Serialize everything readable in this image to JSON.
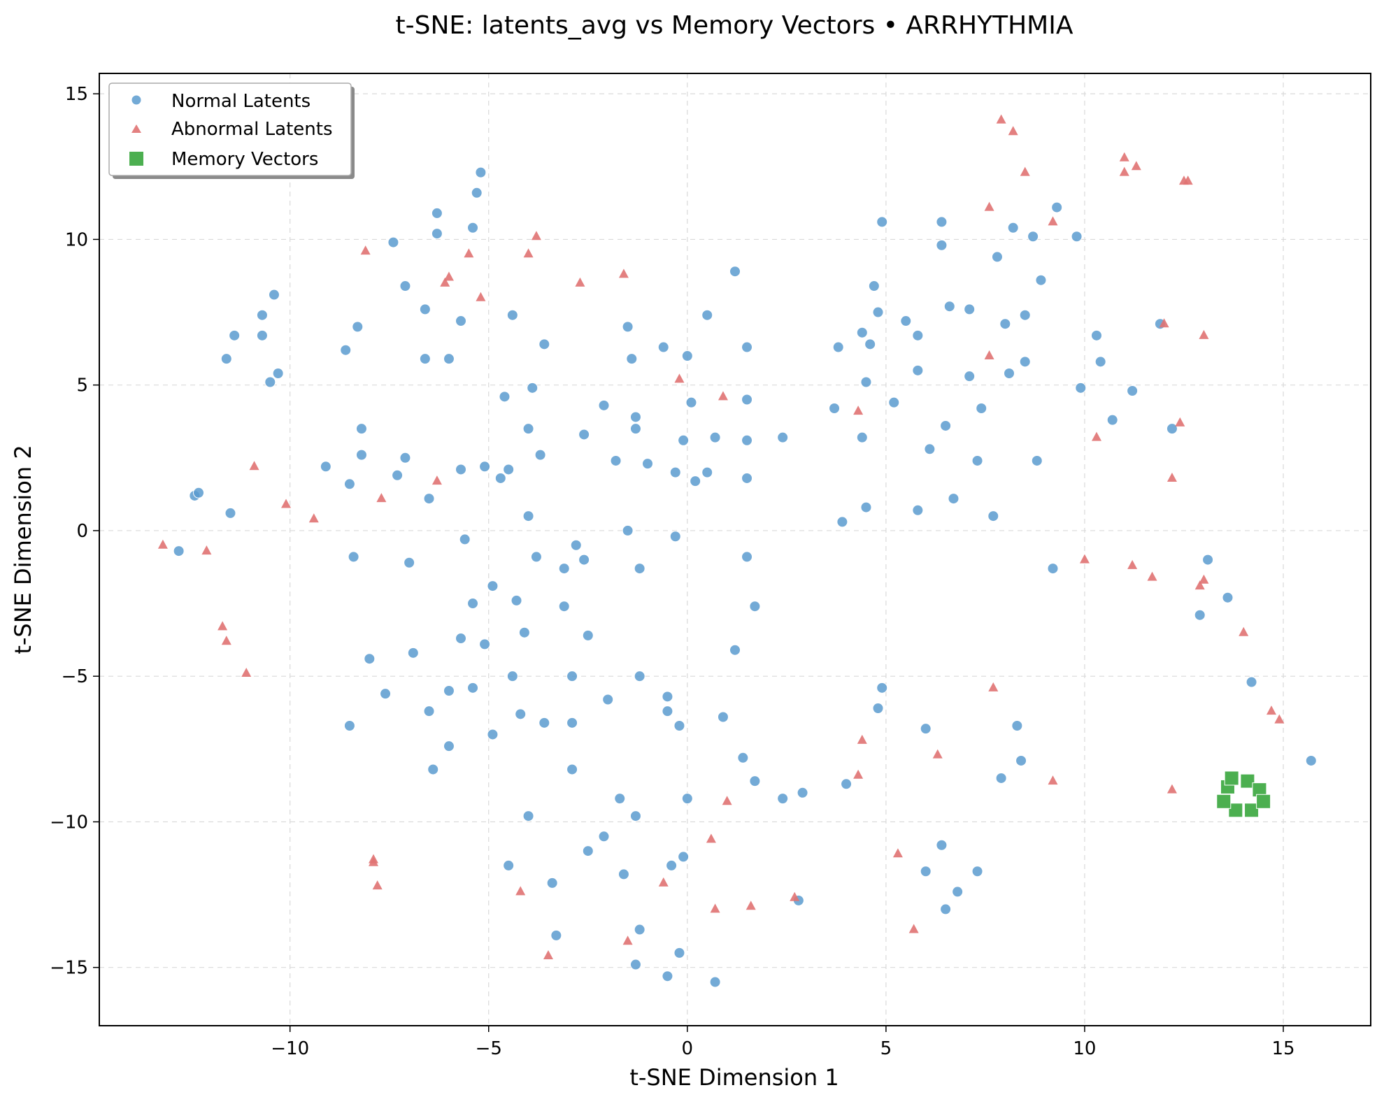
{
  "chart_data": {
    "type": "scatter",
    "title": "t-SNE: latents_avg vs Memory Vectors • ARRHYTHMIA",
    "xlabel": "t-SNE Dimension 1",
    "ylabel": "t-SNE Dimension 2",
    "xlim": [
      -14.8,
      17.2
    ],
    "ylim": [
      -17.0,
      15.7
    ],
    "xticks": [
      -10,
      -5,
      0,
      5,
      10,
      15
    ],
    "yticks": [
      -15,
      -10,
      -5,
      0,
      5,
      10,
      15
    ],
    "xtick_labels": [
      "−10",
      "−5",
      "0",
      "5",
      "10",
      "15"
    ],
    "ytick_labels": [
      "−15",
      "−10",
      "−5",
      "0",
      "5",
      "10",
      "15"
    ],
    "grid": true,
    "legend_position": "top-left",
    "series": [
      {
        "name": "Normal Latents",
        "marker": "circle",
        "color": "#5b9bcf",
        "points": [
          [
            -12.8,
            -0.7
          ],
          [
            -12.4,
            1.2
          ],
          [
            -12.3,
            1.3
          ],
          [
            -11.5,
            0.6
          ],
          [
            -11.6,
            5.9
          ],
          [
            -11.4,
            6.7
          ],
          [
            -10.7,
            7.4
          ],
          [
            -10.7,
            6.7
          ],
          [
            -10.5,
            5.1
          ],
          [
            -10.4,
            8.1
          ],
          [
            -10.3,
            5.4
          ],
          [
            -9.1,
            2.2
          ],
          [
            -8.6,
            6.2
          ],
          [
            -8.5,
            1.6
          ],
          [
            -8.3,
            7.0
          ],
          [
            -8.4,
            -0.9
          ],
          [
            -8.2,
            3.5
          ],
          [
            -8.2,
            2.6
          ],
          [
            -8.0,
            -4.4
          ],
          [
            -8.5,
            -6.7
          ],
          [
            -7.6,
            -5.6
          ],
          [
            -7.4,
            9.9
          ],
          [
            -7.3,
            1.9
          ],
          [
            -7.1,
            2.5
          ],
          [
            -7.1,
            8.4
          ],
          [
            -7.0,
            -1.1
          ],
          [
            -6.9,
            -4.2
          ],
          [
            -6.6,
            7.6
          ],
          [
            -6.6,
            5.9
          ],
          [
            -6.5,
            1.1
          ],
          [
            -6.5,
            -6.2
          ],
          [
            -6.4,
            -8.2
          ],
          [
            -6.3,
            10.9
          ],
          [
            -6.3,
            10.2
          ],
          [
            -6.0,
            5.9
          ],
          [
            -6.0,
            -5.5
          ],
          [
            -6.0,
            -7.4
          ],
          [
            -5.7,
            2.1
          ],
          [
            -5.7,
            -3.7
          ],
          [
            -5.7,
            7.2
          ],
          [
            -5.6,
            -0.3
          ],
          [
            -5.4,
            -2.5
          ],
          [
            -5.4,
            -5.4
          ],
          [
            -5.4,
            10.4
          ],
          [
            -5.3,
            11.6
          ],
          [
            -5.2,
            12.3
          ],
          [
            -5.1,
            2.2
          ],
          [
            -5.1,
            -3.9
          ],
          [
            -4.9,
            -1.9
          ],
          [
            -4.9,
            -7.0
          ],
          [
            -4.7,
            1.8
          ],
          [
            -4.6,
            4.6
          ],
          [
            -4.5,
            2.1
          ],
          [
            -4.5,
            -11.5
          ],
          [
            -4.4,
            7.4
          ],
          [
            -4.4,
            -5.0
          ],
          [
            -4.3,
            -2.4
          ],
          [
            -4.2,
            -6.3
          ],
          [
            -4.1,
            -3.5
          ],
          [
            -4.0,
            3.5
          ],
          [
            -4.0,
            -9.8
          ],
          [
            -4.0,
            0.5
          ],
          [
            -3.9,
            4.9
          ],
          [
            -3.8,
            -0.9
          ],
          [
            -3.7,
            2.6
          ],
          [
            -3.6,
            6.4
          ],
          [
            -3.6,
            -6.6
          ],
          [
            -3.4,
            -12.1
          ],
          [
            -3.3,
            -13.9
          ],
          [
            -3.1,
            -1.3
          ],
          [
            -3.1,
            -2.6
          ],
          [
            -2.9,
            -5.0
          ],
          [
            -2.9,
            -8.2
          ],
          [
            -2.9,
            -6.6
          ],
          [
            -2.8,
            -0.5
          ],
          [
            -2.6,
            3.3
          ],
          [
            -2.6,
            -1.0
          ],
          [
            -2.5,
            -3.6
          ],
          [
            -2.5,
            -11.0
          ],
          [
            -2.1,
            4.3
          ],
          [
            -2.1,
            -10.5
          ],
          [
            -2.0,
            -5.8
          ],
          [
            -1.8,
            2.4
          ],
          [
            -1.7,
            -9.2
          ],
          [
            -1.6,
            -11.8
          ],
          [
            -1.5,
            7.0
          ],
          [
            -1.5,
            0.0
          ],
          [
            -1.4,
            5.9
          ],
          [
            -1.3,
            3.9
          ],
          [
            -1.3,
            -9.8
          ],
          [
            -1.3,
            3.5
          ],
          [
            -1.2,
            -1.3
          ],
          [
            -1.2,
            -5.0
          ],
          [
            -1.2,
            -13.7
          ],
          [
            -1.3,
            -14.9
          ],
          [
            -1.0,
            2.3
          ],
          [
            -0.6,
            6.3
          ],
          [
            -0.5,
            -5.7
          ],
          [
            -0.5,
            -6.2
          ],
          [
            -0.5,
            -15.3
          ],
          [
            -0.4,
            -11.5
          ],
          [
            -0.3,
            2.0
          ],
          [
            -0.3,
            -0.2
          ],
          [
            -0.2,
            -6.7
          ],
          [
            -0.2,
            -14.5
          ],
          [
            -0.1,
            -11.2
          ],
          [
            -0.1,
            3.1
          ],
          [
            0.0,
            6.0
          ],
          [
            0.0,
            -9.2
          ],
          [
            0.1,
            4.4
          ],
          [
            0.2,
            1.7
          ],
          [
            0.5,
            7.4
          ],
          [
            0.5,
            2.0
          ],
          [
            0.7,
            3.2
          ],
          [
            0.7,
            -15.5
          ],
          [
            0.9,
            -6.4
          ],
          [
            1.2,
            8.9
          ],
          [
            1.2,
            -4.1
          ],
          [
            1.4,
            -7.8
          ],
          [
            1.5,
            1.8
          ],
          [
            1.5,
            6.3
          ],
          [
            1.5,
            4.5
          ],
          [
            1.5,
            3.1
          ],
          [
            1.5,
            -0.9
          ],
          [
            1.7,
            -2.6
          ],
          [
            1.7,
            -8.6
          ],
          [
            2.4,
            3.2
          ],
          [
            2.4,
            -9.2
          ],
          [
            2.8,
            -12.7
          ],
          [
            2.9,
            -9.0
          ],
          [
            3.7,
            4.2
          ],
          [
            3.8,
            6.3
          ],
          [
            3.9,
            0.3
          ],
          [
            4.0,
            -8.7
          ],
          [
            4.4,
            6.8
          ],
          [
            4.4,
            3.2
          ],
          [
            4.5,
            5.1
          ],
          [
            4.5,
            0.8
          ],
          [
            4.6,
            6.4
          ],
          [
            4.7,
            8.4
          ],
          [
            4.8,
            7.5
          ],
          [
            4.8,
            -6.1
          ],
          [
            4.9,
            10.6
          ],
          [
            4.9,
            -5.4
          ],
          [
            5.2,
            4.4
          ],
          [
            5.5,
            7.2
          ],
          [
            5.8,
            6.7
          ],
          [
            5.8,
            5.5
          ],
          [
            5.8,
            0.7
          ],
          [
            6.0,
            -6.8
          ],
          [
            6.0,
            -11.7
          ],
          [
            6.1,
            2.8
          ],
          [
            6.4,
            10.6
          ],
          [
            6.4,
            9.8
          ],
          [
            6.4,
            -10.8
          ],
          [
            6.5,
            3.6
          ],
          [
            6.5,
            -13.0
          ],
          [
            6.6,
            7.7
          ],
          [
            6.7,
            1.1
          ],
          [
            6.8,
            -12.4
          ],
          [
            7.1,
            7.6
          ],
          [
            7.1,
            5.3
          ],
          [
            7.3,
            2.4
          ],
          [
            7.3,
            -11.7
          ],
          [
            7.4,
            4.2
          ],
          [
            7.7,
            0.5
          ],
          [
            7.8,
            9.4
          ],
          [
            7.9,
            -8.5
          ],
          [
            8.0,
            7.1
          ],
          [
            8.1,
            5.4
          ],
          [
            8.2,
            10.4
          ],
          [
            8.3,
            -6.7
          ],
          [
            8.4,
            -7.9
          ],
          [
            8.5,
            5.8
          ],
          [
            8.5,
            7.4
          ],
          [
            8.7,
            10.1
          ],
          [
            8.8,
            2.4
          ],
          [
            8.9,
            8.6
          ],
          [
            9.2,
            -1.3
          ],
          [
            9.3,
            11.1
          ],
          [
            9.8,
            10.1
          ],
          [
            9.9,
            4.9
          ],
          [
            10.3,
            6.7
          ],
          [
            10.4,
            5.8
          ],
          [
            10.7,
            3.8
          ],
          [
            11.2,
            4.8
          ],
          [
            11.9,
            7.1
          ],
          [
            12.2,
            3.5
          ],
          [
            12.9,
            -2.9
          ],
          [
            13.1,
            -1.0
          ],
          [
            13.6,
            -2.3
          ],
          [
            14.2,
            -5.2
          ],
          [
            15.7,
            -7.9
          ]
        ]
      },
      {
        "name": "Abnormal Latents",
        "marker": "triangle",
        "color": "#e07272",
        "points": [
          [
            -13.2,
            -0.5
          ],
          [
            -12.1,
            -0.7
          ],
          [
            -11.7,
            -3.3
          ],
          [
            -11.6,
            -3.8
          ],
          [
            -11.1,
            -4.9
          ],
          [
            -10.9,
            2.2
          ],
          [
            -10.1,
            0.9
          ],
          [
            -9.4,
            0.4
          ],
          [
            -8.1,
            9.6
          ],
          [
            -7.9,
            -11.3
          ],
          [
            -7.9,
            -11.4
          ],
          [
            -7.8,
            -12.2
          ],
          [
            -7.7,
            1.1
          ],
          [
            -6.3,
            1.7
          ],
          [
            -6.1,
            8.5
          ],
          [
            -6.0,
            8.7
          ],
          [
            -5.5,
            9.5
          ],
          [
            -5.2,
            8.0
          ],
          [
            -4.2,
            -12.4
          ],
          [
            -4.0,
            9.5
          ],
          [
            -3.8,
            10.1
          ],
          [
            -3.5,
            -14.6
          ],
          [
            -2.7,
            8.5
          ],
          [
            -1.6,
            8.8
          ],
          [
            -1.5,
            -14.1
          ],
          [
            -0.6,
            -12.1
          ],
          [
            -0.2,
            5.2
          ],
          [
            0.6,
            -10.6
          ],
          [
            0.7,
            -13.0
          ],
          [
            0.9,
            4.6
          ],
          [
            1.0,
            -9.3
          ],
          [
            1.6,
            -12.9
          ],
          [
            2.7,
            -12.6
          ],
          [
            4.3,
            4.1
          ],
          [
            4.3,
            -8.4
          ],
          [
            4.4,
            -7.2
          ],
          [
            5.3,
            -11.1
          ],
          [
            5.7,
            -13.7
          ],
          [
            6.3,
            -7.7
          ],
          [
            7.6,
            11.1
          ],
          [
            7.6,
            6.0
          ],
          [
            7.7,
            -5.4
          ],
          [
            7.9,
            14.1
          ],
          [
            8.2,
            13.7
          ],
          [
            8.5,
            12.3
          ],
          [
            9.2,
            10.6
          ],
          [
            9.2,
            -8.6
          ],
          [
            10.0,
            -1.0
          ],
          [
            10.3,
            3.2
          ],
          [
            11.0,
            12.8
          ],
          [
            11.0,
            12.3
          ],
          [
            11.2,
            -1.2
          ],
          [
            11.3,
            12.5
          ],
          [
            11.7,
            -1.6
          ],
          [
            12.0,
            7.1
          ],
          [
            12.2,
            1.8
          ],
          [
            12.2,
            -8.9
          ],
          [
            12.4,
            3.7
          ],
          [
            12.5,
            12.0
          ],
          [
            12.6,
            12.0
          ],
          [
            12.9,
            -1.9
          ],
          [
            13.0,
            -1.7
          ],
          [
            13.0,
            6.7
          ],
          [
            14.0,
            -3.5
          ],
          [
            14.7,
            -6.2
          ],
          [
            14.9,
            -6.5
          ]
        ]
      },
      {
        "name": "Memory Vectors",
        "marker": "square",
        "color": "#4caf50",
        "points": [
          [
            13.6,
            -8.8
          ],
          [
            13.7,
            -8.5
          ],
          [
            13.8,
            -9.6
          ],
          [
            14.1,
            -8.6
          ],
          [
            14.2,
            -9.6
          ],
          [
            14.4,
            -8.9
          ],
          [
            14.5,
            -9.3
          ],
          [
            13.5,
            -9.3
          ]
        ]
      }
    ]
  }
}
